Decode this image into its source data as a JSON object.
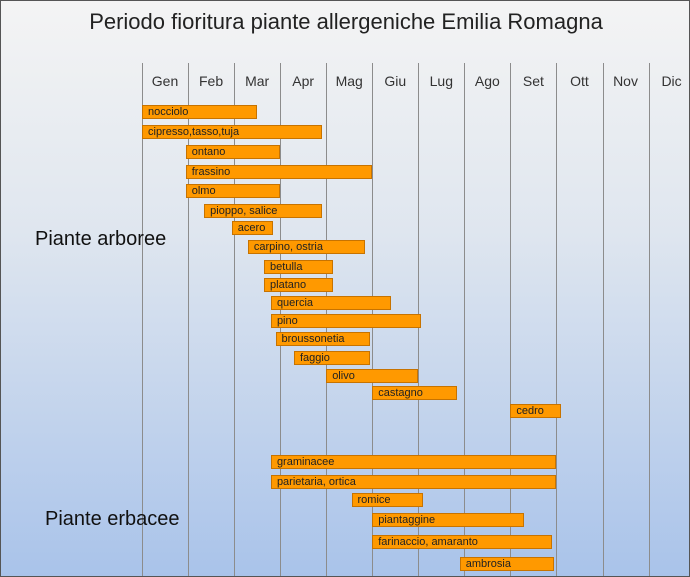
{
  "chart_data": {
    "type": "gantt",
    "title": "Periodo fioritura piante allergeniche Emilia Romagna",
    "x_unit": "month",
    "categories": [
      "Gen",
      "Feb",
      "Mar",
      "Apr",
      "Mag",
      "Giu",
      "Lug",
      "Ago",
      "Set",
      "Ott",
      "Nov",
      "Dic"
    ],
    "groups": [
      {
        "name": "Piante arboree",
        "items": [
          {
            "label": "nocciolo",
            "start": 1.0,
            "end": 3.5
          },
          {
            "label": "cipresso,tasso,tuja",
            "start": 1.0,
            "end": 4.9
          },
          {
            "label": "ontano",
            "start": 1.95,
            "end": 4.0
          },
          {
            "label": "frassino",
            "start": 1.95,
            "end": 6.0
          },
          {
            "label": "olmo",
            "start": 1.95,
            "end": 4.0
          },
          {
            "label": "pioppo, salice",
            "start": 2.35,
            "end": 4.9
          },
          {
            "label": "acero",
            "start": 2.95,
            "end": 3.85
          },
          {
            "label": "carpino, ostria",
            "start": 3.3,
            "end": 5.85
          },
          {
            "label": "betulla",
            "start": 3.65,
            "end": 5.15
          },
          {
            "label": "platano",
            "start": 3.65,
            "end": 5.15
          },
          {
            "label": "quercia",
            "start": 3.8,
            "end": 6.4
          },
          {
            "label": "pino",
            "start": 3.8,
            "end": 7.05
          },
          {
            "label": "broussonetia",
            "start": 3.9,
            "end": 5.95
          },
          {
            "label": "faggio",
            "start": 4.3,
            "end": 5.95
          },
          {
            "label": "olivo",
            "start": 5.0,
            "end": 7.0
          },
          {
            "label": "castagno",
            "start": 6.0,
            "end": 7.85
          },
          {
            "label": "cedro",
            "start": 9.0,
            "end": 10.1
          }
        ]
      },
      {
        "name": "Piante erbacee",
        "items": [
          {
            "label": "graminacee",
            "start": 3.8,
            "end": 10.0
          },
          {
            "label": "parietaria, ortica",
            "start": 3.8,
            "end": 10.0
          },
          {
            "label": "romice",
            "start": 5.55,
            "end": 7.1
          },
          {
            "label": "piantaggine",
            "start": 6.0,
            "end": 9.3
          },
          {
            "label": "farinaccio, amaranto",
            "start": 6.0,
            "end": 9.9
          },
          {
            "label": "ambrosia",
            "start": 7.9,
            "end": 9.95
          }
        ]
      }
    ]
  }
}
